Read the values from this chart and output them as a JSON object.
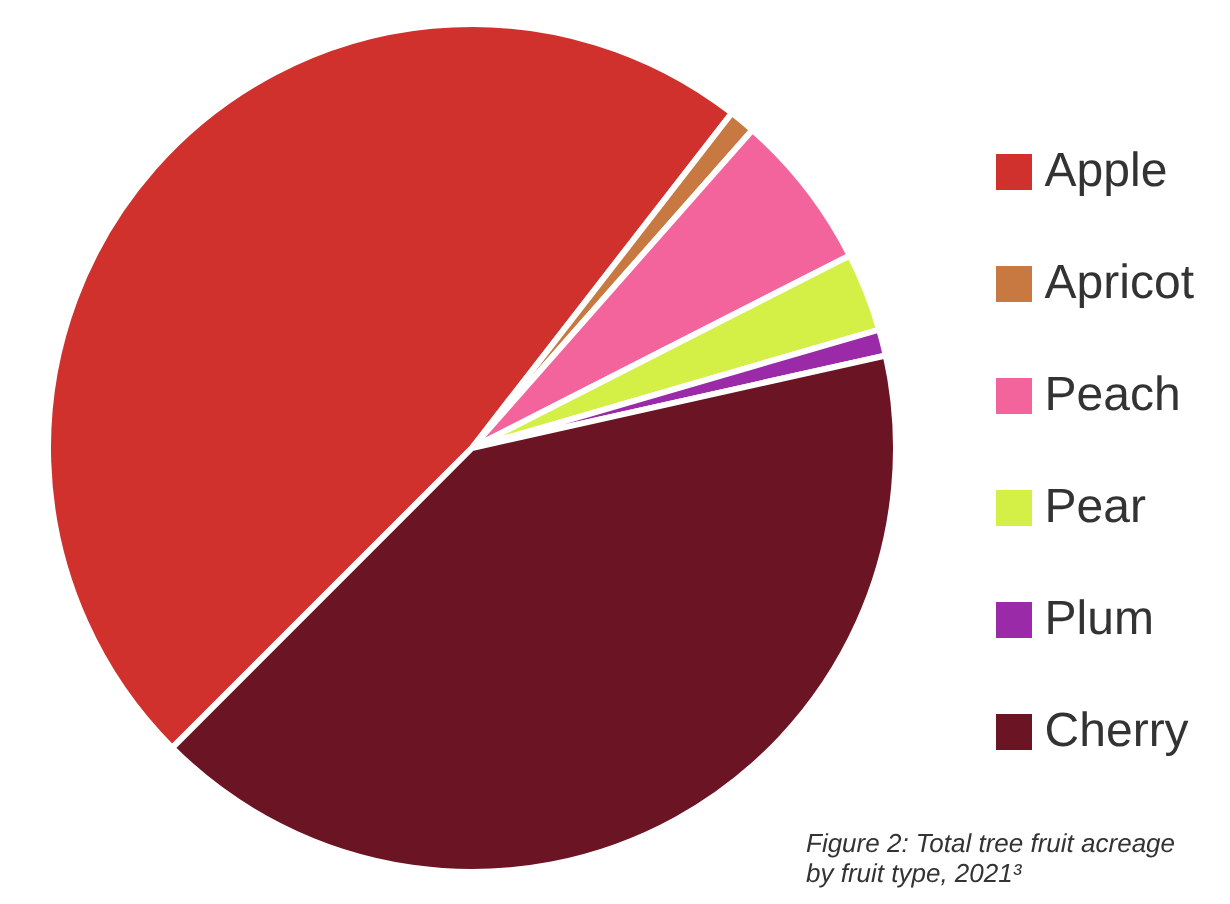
{
  "chart_data": {
    "type": "pie",
    "categories": [
      "Apple",
      "Apricot",
      "Peach",
      "Pear",
      "Plum",
      "Cherry"
    ],
    "values": [
      48,
      1,
      6,
      3,
      1,
      41
    ],
    "colors": [
      "#d0312d",
      "#c87941",
      "#f4649c",
      "#d4f046",
      "#9b2aa8",
      "#6b1424"
    ],
    "legend": "right",
    "annotations": [
      "Figure 2: Total tree fruit acreage by fruit type, 2021³"
    ]
  }
}
